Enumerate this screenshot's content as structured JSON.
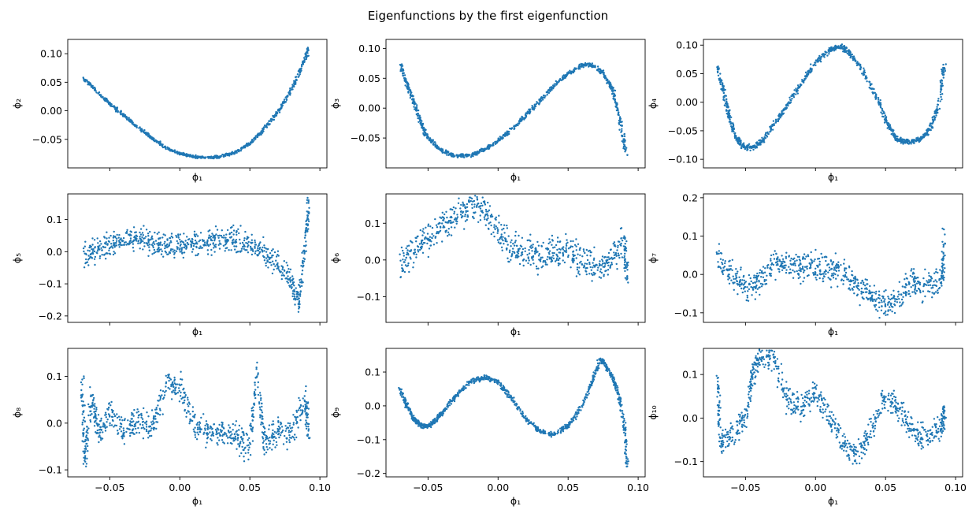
{
  "figure": {
    "title": "Eigenfunctions by the first eigenfunction",
    "point_color": "#1f77b4"
  },
  "chart_data": [
    {
      "type": "scatter",
      "xlabel": "ϕ₁",
      "ylabel": "ϕ₂",
      "xlim": [
        -0.08,
        0.105
      ],
      "ylim": [
        -0.1,
        0.125
      ],
      "xticks": [
        -0.05,
        0.0,
        0.05,
        0.1
      ],
      "xtick_labels": [
        "−0.05",
        "0.00",
        "0.05",
        "0.10"
      ],
      "yticks": [
        -0.05,
        0.0,
        0.05,
        0.1
      ],
      "ytick_labels": [
        "−0.05",
        "0.00",
        "0.05",
        "0.10"
      ],
      "show_xtick_labels": false,
      "curve": [
        [
          -0.0685,
          0.057
        ],
        [
          -0.06,
          0.035
        ],
        [
          -0.05,
          0.012
        ],
        [
          -0.04,
          -0.008
        ],
        [
          -0.03,
          -0.028
        ],
        [
          -0.02,
          -0.047
        ],
        [
          -0.01,
          -0.065
        ],
        [
          0.0,
          -0.075
        ],
        [
          0.01,
          -0.08
        ],
        [
          0.02,
          -0.082
        ],
        [
          0.03,
          -0.08
        ],
        [
          0.04,
          -0.072
        ],
        [
          0.05,
          -0.057
        ],
        [
          0.06,
          -0.033
        ],
        [
          0.07,
          -0.002
        ],
        [
          0.08,
          0.038
        ],
        [
          0.088,
          0.082
        ],
        [
          0.092,
          0.11
        ]
      ],
      "scatter": 0.003
    },
    {
      "type": "scatter",
      "xlabel": "ϕ₁",
      "ylabel": "ϕ₃",
      "xlim": [
        -0.08,
        0.105
      ],
      "ylim": [
        -0.1,
        0.115
      ],
      "xticks": [
        -0.05,
        0.0,
        0.05,
        0.1
      ],
      "xtick_labels": [
        "−0.05",
        "0.00",
        "0.05",
        "0.10"
      ],
      "yticks": [
        -0.05,
        0.0,
        0.05,
        0.1
      ],
      "ytick_labels": [
        "−0.05",
        "0.00",
        "0.05",
        "0.10"
      ],
      "show_xtick_labels": false,
      "curve": [
        [
          -0.0695,
          0.073
        ],
        [
          -0.065,
          0.04
        ],
        [
          -0.06,
          0.01
        ],
        [
          -0.055,
          -0.025
        ],
        [
          -0.05,
          -0.05
        ],
        [
          -0.04,
          -0.071
        ],
        [
          -0.03,
          -0.081
        ],
        [
          -0.02,
          -0.079
        ],
        [
          -0.01,
          -0.07
        ],
        [
          0.0,
          -0.055
        ],
        [
          0.01,
          -0.035
        ],
        [
          0.02,
          -0.012
        ],
        [
          0.03,
          0.013
        ],
        [
          0.04,
          0.037
        ],
        [
          0.05,
          0.058
        ],
        [
          0.06,
          0.072
        ],
        [
          0.067,
          0.072
        ],
        [
          0.075,
          0.058
        ],
        [
          0.082,
          0.03
        ],
        [
          0.087,
          -0.02
        ],
        [
          0.092,
          -0.08
        ]
      ],
      "scatter": 0.004
    },
    {
      "type": "scatter",
      "xlabel": "ϕ₁",
      "ylabel": "ϕ₄",
      "xlim": [
        -0.08,
        0.105
      ],
      "ylim": [
        -0.115,
        0.11
      ],
      "xticks": [
        -0.05,
        0.0,
        0.05,
        0.1
      ],
      "xtick_labels": [
        "−0.05",
        "0.00",
        "0.05",
        "0.10"
      ],
      "yticks": [
        -0.1,
        -0.05,
        0.0,
        0.05,
        0.1
      ],
      "ytick_labels": [
        "−0.10",
        "−0.05",
        "0.00",
        "0.05",
        "0.10"
      ],
      "show_xtick_labels": false,
      "curve": [
        [
          -0.07,
          0.065
        ],
        [
          -0.066,
          0.02
        ],
        [
          -0.062,
          -0.02
        ],
        [
          -0.058,
          -0.055
        ],
        [
          -0.052,
          -0.077
        ],
        [
          -0.045,
          -0.08
        ],
        [
          -0.038,
          -0.068
        ],
        [
          -0.03,
          -0.04
        ],
        [
          -0.02,
          -0.005
        ],
        [
          -0.01,
          0.035
        ],
        [
          0.0,
          0.07
        ],
        [
          0.01,
          0.092
        ],
        [
          0.018,
          0.098
        ],
        [
          0.025,
          0.085
        ],
        [
          0.035,
          0.05
        ],
        [
          0.045,
          0.0
        ],
        [
          0.052,
          -0.04
        ],
        [
          0.058,
          -0.065
        ],
        [
          0.065,
          -0.07
        ],
        [
          0.075,
          -0.065
        ],
        [
          0.082,
          -0.045
        ],
        [
          0.088,
          -0.005
        ],
        [
          0.092,
          0.07
        ]
      ],
      "scatter": 0.006
    },
    {
      "type": "scatter",
      "xlabel": "ϕ₁",
      "ylabel": "ϕ₅",
      "xlim": [
        -0.08,
        0.105
      ],
      "ylim": [
        -0.22,
        0.18
      ],
      "xticks": [
        -0.05,
        0.0,
        0.05,
        0.1
      ],
      "xtick_labels": [
        "−0.05",
        "0.00",
        "0.05",
        "0.10"
      ],
      "yticks": [
        -0.2,
        -0.1,
        0.0,
        0.1
      ],
      "ytick_labels": [
        "−0.2",
        "−0.1",
        "0.0",
        "0.1"
      ],
      "show_xtick_labels": false,
      "curve": [
        [
          -0.069,
          -0.012
        ],
        [
          -0.06,
          0.005
        ],
        [
          -0.05,
          0.025
        ],
        [
          -0.04,
          0.038
        ],
        [
          -0.03,
          0.04
        ],
        [
          -0.02,
          0.03
        ],
        [
          -0.01,
          0.02
        ],
        [
          0.0,
          0.02
        ],
        [
          0.01,
          0.025
        ],
        [
          0.02,
          0.032
        ],
        [
          0.03,
          0.04
        ],
        [
          0.04,
          0.038
        ],
        [
          0.05,
          0.02
        ],
        [
          0.06,
          0.0
        ],
        [
          0.07,
          -0.04
        ],
        [
          0.08,
          -0.1
        ],
        [
          0.085,
          -0.15
        ],
        [
          0.09,
          0.05
        ],
        [
          0.092,
          0.15
        ]
      ],
      "scatter": 0.045
    },
    {
      "type": "scatter",
      "xlabel": "ϕ₁",
      "ylabel": "ϕ₆",
      "xlim": [
        -0.08,
        0.105
      ],
      "ylim": [
        -0.17,
        0.18
      ],
      "xticks": [
        -0.05,
        0.0,
        0.05,
        0.1
      ],
      "xtick_labels": [
        "−0.05",
        "0.00",
        "0.05",
        "0.10"
      ],
      "yticks": [
        -0.1,
        0.0,
        0.1
      ],
      "ytick_labels": [
        "−0.1",
        "0.0",
        "0.1"
      ],
      "show_xtick_labels": false,
      "curve": [
        [
          -0.07,
          -0.02
        ],
        [
          -0.06,
          0.03
        ],
        [
          -0.05,
          0.06
        ],
        [
          -0.04,
          0.09
        ],
        [
          -0.03,
          0.12
        ],
        [
          -0.02,
          0.15
        ],
        [
          -0.01,
          0.14
        ],
        [
          0.0,
          0.08
        ],
        [
          0.01,
          0.03
        ],
        [
          0.02,
          0.02
        ],
        [
          0.03,
          0.01
        ],
        [
          0.04,
          0.02
        ],
        [
          0.05,
          0.02
        ],
        [
          0.06,
          0.0
        ],
        [
          0.07,
          -0.02
        ],
        [
          0.08,
          0.0
        ],
        [
          0.09,
          0.05
        ],
        [
          0.092,
          -0.05
        ]
      ],
      "scatter": 0.05
    },
    {
      "type": "scatter",
      "xlabel": "ϕ₁",
      "ylabel": "ϕ₇",
      "xlim": [
        -0.08,
        0.105
      ],
      "ylim": [
        -0.125,
        0.21
      ],
      "xticks": [
        -0.05,
        0.0,
        0.05,
        0.1
      ],
      "xtick_labels": [
        "−0.05",
        "0.00",
        "0.05",
        "0.10"
      ],
      "yticks": [
        -0.1,
        0.0,
        0.1,
        0.2
      ],
      "ytick_labels": [
        "−0.1",
        "0.0",
        "0.1",
        "0.2"
      ],
      "show_xtick_labels": false,
      "curve": [
        [
          -0.07,
          0.05
        ],
        [
          -0.06,
          0.0
        ],
        [
          -0.05,
          -0.04
        ],
        [
          -0.04,
          -0.02
        ],
        [
          -0.03,
          0.03
        ],
        [
          -0.02,
          0.03
        ],
        [
          -0.01,
          0.02
        ],
        [
          0.0,
          0.02
        ],
        [
          0.01,
          0.02
        ],
        [
          0.02,
          0.0
        ],
        [
          0.03,
          -0.03
        ],
        [
          0.04,
          -0.06
        ],
        [
          0.05,
          -0.08
        ],
        [
          0.06,
          -0.05
        ],
        [
          0.07,
          -0.02
        ],
        [
          0.08,
          -0.03
        ],
        [
          0.09,
          -0.02
        ],
        [
          0.092,
          0.1
        ]
      ],
      "scatter": 0.045
    },
    {
      "type": "scatter",
      "xlabel": "ϕ₁",
      "ylabel": "ϕ₈",
      "xlim": [
        -0.08,
        0.105
      ],
      "ylim": [
        -0.115,
        0.16
      ],
      "xticks": [
        -0.05,
        0.0,
        0.05,
        0.1
      ],
      "xtick_labels": [
        "−0.05",
        "0.00",
        "0.05",
        "0.10"
      ],
      "yticks": [
        -0.1,
        0.0,
        0.1
      ],
      "ytick_labels": [
        "−0.1",
        "0.0",
        "0.1"
      ],
      "show_xtick_labels": true,
      "curve": [
        [
          -0.07,
          0.12
        ],
        [
          -0.068,
          -0.08
        ],
        [
          -0.063,
          0.05
        ],
        [
          -0.058,
          -0.02
        ],
        [
          -0.05,
          0.02
        ],
        [
          -0.04,
          -0.01
        ],
        [
          -0.03,
          0.0
        ],
        [
          -0.02,
          -0.01
        ],
        [
          -0.01,
          0.08
        ],
        [
          0.0,
          0.08
        ],
        [
          0.01,
          0.0
        ],
        [
          0.02,
          -0.02
        ],
        [
          0.03,
          -0.02
        ],
        [
          0.04,
          -0.03
        ],
        [
          0.05,
          -0.05
        ],
        [
          0.055,
          0.12
        ],
        [
          0.06,
          -0.04
        ],
        [
          0.07,
          -0.02
        ],
        [
          0.08,
          -0.02
        ],
        [
          0.09,
          0.05
        ],
        [
          0.092,
          -0.03
        ]
      ],
      "scatter": 0.035
    },
    {
      "type": "scatter",
      "xlabel": "ϕ₁",
      "ylabel": "ϕ₉",
      "xlim": [
        -0.08,
        0.105
      ],
      "ylim": [
        -0.21,
        0.17
      ],
      "xticks": [
        -0.05,
        0.0,
        0.05,
        0.1
      ],
      "xtick_labels": [
        "−0.05",
        "0.00",
        "0.05",
        "0.10"
      ],
      "yticks": [
        -0.2,
        -0.1,
        0.0,
        0.1
      ],
      "ytick_labels": [
        "−0.2",
        "−0.1",
        "0.0",
        "0.1"
      ],
      "show_xtick_labels": true,
      "curve": [
        [
          -0.07,
          0.05
        ],
        [
          -0.065,
          0.0
        ],
        [
          -0.06,
          -0.04
        ],
        [
          -0.055,
          -0.058
        ],
        [
          -0.05,
          -0.06
        ],
        [
          -0.045,
          -0.045
        ],
        [
          -0.04,
          -0.02
        ],
        [
          -0.03,
          0.03
        ],
        [
          -0.02,
          0.07
        ],
        [
          -0.01,
          0.085
        ],
        [
          0.0,
          0.07
        ],
        [
          0.01,
          0.02
        ],
        [
          0.02,
          -0.04
        ],
        [
          0.03,
          -0.075
        ],
        [
          0.04,
          -0.085
        ],
        [
          0.05,
          -0.06
        ],
        [
          0.06,
          0.0
        ],
        [
          0.068,
          0.08
        ],
        [
          0.073,
          0.14
        ],
        [
          0.08,
          0.1
        ],
        [
          0.085,
          0.05
        ],
        [
          0.09,
          -0.05
        ],
        [
          0.092,
          -0.18
        ]
      ],
      "scatter": 0.008
    },
    {
      "type": "scatter",
      "xlabel": "ϕ₁",
      "ylabel": "ϕ₁₀",
      "xlim": [
        -0.08,
        0.105
      ],
      "ylim": [
        -0.135,
        0.16
      ],
      "xticks": [
        -0.05,
        0.0,
        0.05,
        0.1
      ],
      "xtick_labels": [
        "−0.05",
        "0.00",
        "0.05",
        "0.10"
      ],
      "yticks": [
        -0.1,
        0.0,
        0.1
      ],
      "ytick_labels": [
        "−0.1",
        "0.0",
        "0.1"
      ],
      "show_xtick_labels": true,
      "curve": [
        [
          -0.07,
          0.12
        ],
        [
          -0.068,
          -0.06
        ],
        [
          -0.06,
          -0.04
        ],
        [
          -0.05,
          0.0
        ],
        [
          -0.045,
          0.1
        ],
        [
          -0.04,
          0.14
        ],
        [
          -0.03,
          0.14
        ],
        [
          -0.02,
          0.04
        ],
        [
          -0.01,
          0.02
        ],
        [
          0.0,
          0.06
        ],
        [
          0.01,
          0.0
        ],
        [
          0.02,
          -0.06
        ],
        [
          0.03,
          -0.09
        ],
        [
          0.04,
          -0.02
        ],
        [
          0.05,
          0.05
        ],
        [
          0.06,
          0.02
        ],
        [
          0.07,
          -0.03
        ],
        [
          0.08,
          -0.05
        ],
        [
          0.09,
          -0.02
        ],
        [
          0.092,
          0.01
        ]
      ],
      "scatter": 0.035
    }
  ]
}
